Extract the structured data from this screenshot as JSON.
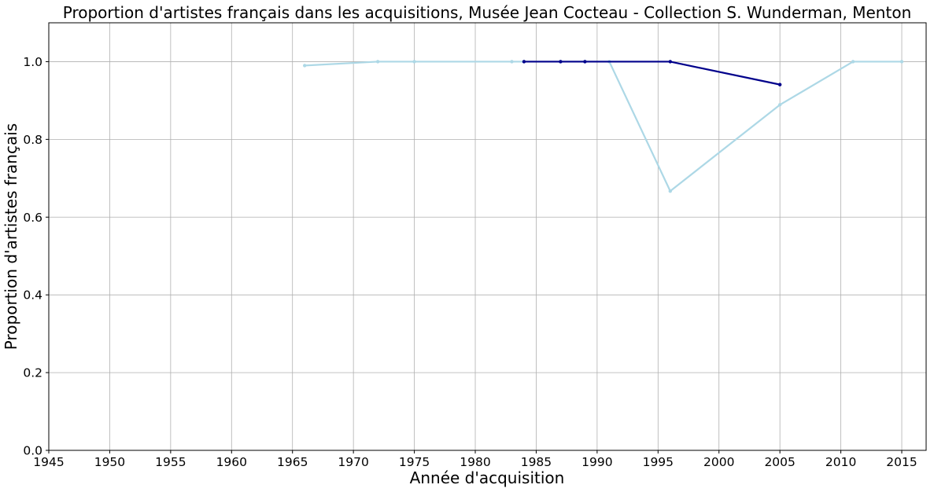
{
  "chart_data": {
    "type": "line",
    "title": "Proportion d'artistes français dans les acquisitions, Musée Jean Cocteau - Collection S. Wunderman, Menton",
    "xlabel": "Année d'acquisition",
    "ylabel": "Proportion d'artistes français",
    "xlim": [
      1945,
      2017
    ],
    "ylim": [
      0.0,
      1.1
    ],
    "xticks": [
      1945,
      1950,
      1955,
      1960,
      1965,
      1970,
      1975,
      1980,
      1985,
      1990,
      1995,
      2000,
      2005,
      2010,
      2015
    ],
    "yticks": [
      0.0,
      0.2,
      0.4,
      0.6,
      0.8,
      1.0
    ],
    "xtick_labels": [
      "1945",
      "1950",
      "1955",
      "1960",
      "1965",
      "1970",
      "1975",
      "1980",
      "1985",
      "1990",
      "1995",
      "2000",
      "2005",
      "2010",
      "2015"
    ],
    "ytick_labels": [
      "0.0",
      "0.2",
      "0.4",
      "0.6",
      "0.8",
      "1.0"
    ],
    "grid": true,
    "series": [
      {
        "color": "#add8e6",
        "x": [
          1966,
          1972,
          1975,
          1983,
          1984,
          1987,
          1989,
          1991,
          1996,
          2005,
          2011,
          2015
        ],
        "y": [
          0.99,
          1.0,
          1.0,
          1.0,
          1.0,
          1.0,
          1.0,
          1.0,
          0.667,
          0.889,
          1.0,
          1.0
        ]
      },
      {
        "color": "#00008b",
        "x": [
          1984,
          1987,
          1989,
          1996,
          2005
        ],
        "y": [
          1.0,
          1.0,
          1.0,
          1.0,
          0.941
        ]
      }
    ]
  }
}
